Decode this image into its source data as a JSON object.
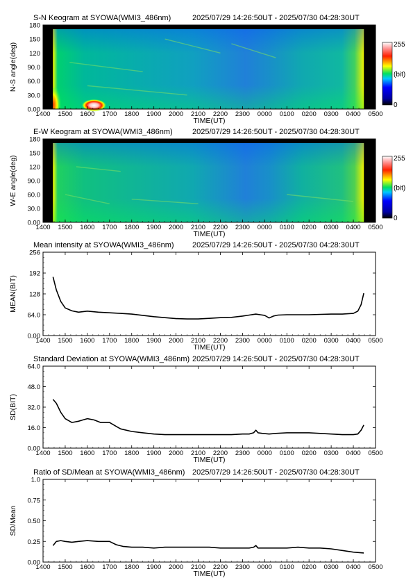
{
  "panels": [
    {
      "kind": "keogram",
      "title": "S-N Keogram at SYOWA(WMI3_486nm)",
      "time_range": "2025/07/29 14:26:50UT - 2025/07/30 04:28:30UT",
      "ylabel": "N-S angle(deg)",
      "xlabel": "TIME(UT)",
      "yticks": [
        "0.00",
        "30.0",
        "60.0",
        "90.0",
        "120",
        "150",
        "180"
      ],
      "colorbar": {
        "max": "255",
        "unit": "(bit)",
        "min": "0"
      }
    },
    {
      "kind": "keogram",
      "title": "E-W Keogram at SYOWA(WMI3_486nm)",
      "time_range": "2025/07/29 14:26:50UT - 2025/07/30 04:28:30UT",
      "ylabel": "W-E angle(deg)",
      "xlabel": "TIME(UT)",
      "yticks": [
        "0.00",
        "30.0",
        "60.0",
        "90.0",
        "120",
        "150",
        "180"
      ],
      "colorbar": {
        "max": "255",
        "unit": "(bit)",
        "min": "0"
      }
    },
    {
      "kind": "line",
      "title": "Mean intensity at SYOWA(WMI3_486nm)",
      "time_range": "2025/07/29 14:26:50UT - 2025/07/30 04:28:30UT",
      "ylabel": "MEAN(BIT)",
      "xlabel": "TIME(UT)",
      "yticks": [
        "0.00",
        "64.0",
        "128",
        "192",
        "256"
      ]
    },
    {
      "kind": "line",
      "title": "Standard Deviation at SYOWA(WMI3_486nm)",
      "time_range": "2025/07/29 14:26:50UT - 2025/07/30 04:28:30UT",
      "ylabel": "SD(BIT)",
      "xlabel": "TIME(UT)",
      "yticks": [
        "0.00",
        "16.0",
        "32.0",
        "48.0",
        "64.0"
      ]
    },
    {
      "kind": "line",
      "title": "Ratio of SD/Mean at SYOWA(WMI3_486nm)",
      "time_range": "2025/07/29 14:26:50UT - 2025/07/30 04:28:30UT",
      "ylabel": "SD/Mean",
      "xlabel": "TIME(UT)",
      "yticks": [
        "0.00",
        "0.25",
        "0.50",
        "0.75",
        "1.0"
      ]
    }
  ],
  "xticks": [
    "1400",
    "1500",
    "1600",
    "1700",
    "1800",
    "1900",
    "2000",
    "2100",
    "2200",
    "2300",
    "0000",
    "0100",
    "0200",
    "0300",
    "0400",
    "0500"
  ],
  "chart_data": [
    {
      "type": "heatmap",
      "title": "S-N Keogram at SYOWA(WMI3_486nm)",
      "xlabel": "TIME(UT)",
      "ylabel": "N-S angle(deg)",
      "x_range_ut_hours": [
        14,
        29
      ],
      "ylim": [
        0,
        180
      ],
      "color_range": [
        0,
        255
      ],
      "data_start_ut": "14:26:50",
      "data_end_ut": "04:28:30"
    },
    {
      "type": "heatmap",
      "title": "E-W Keogram at SYOWA(WMI3_486nm)",
      "xlabel": "TIME(UT)",
      "ylabel": "W-E angle(deg)",
      "x_range_ut_hours": [
        14,
        29
      ],
      "ylim": [
        0,
        180
      ],
      "color_range": [
        0,
        255
      ],
      "data_start_ut": "14:26:50",
      "data_end_ut": "04:28:30"
    },
    {
      "type": "line",
      "title": "Mean intensity at SYOWA(WMI3_486nm)",
      "xlabel": "TIME(UT)",
      "ylabel": "MEAN(BIT)",
      "ylim": [
        0,
        256
      ],
      "x": [
        14.45,
        14.6,
        14.8,
        15.0,
        15.3,
        15.6,
        16.0,
        16.5,
        17.0,
        17.5,
        18.0,
        18.5,
        19.0,
        19.5,
        20.0,
        20.5,
        21.0,
        21.5,
        22.0,
        22.5,
        23.0,
        23.3,
        23.6,
        23.8,
        24.0,
        24.2,
        24.4,
        24.6,
        25.0,
        25.5,
        26.0,
        26.5,
        27.0,
        27.5,
        28.0,
        28.2,
        28.35,
        28.47
      ],
      "y": [
        180,
        140,
        105,
        85,
        76,
        72,
        75,
        72,
        70,
        68,
        66,
        62,
        58,
        55,
        52,
        51,
        51,
        53,
        55,
        56,
        60,
        63,
        66,
        64,
        62,
        54,
        60,
        63,
        64,
        64,
        64,
        65,
        66,
        66,
        68,
        75,
        95,
        130
      ]
    },
    {
      "type": "line",
      "title": "Standard Deviation at SYOWA(WMI3_486nm)",
      "xlabel": "TIME(UT)",
      "ylabel": "SD(BIT)",
      "ylim": [
        0,
        64
      ],
      "x": [
        14.45,
        14.6,
        14.8,
        15.0,
        15.3,
        15.6,
        15.8,
        16.0,
        16.3,
        16.6,
        16.8,
        17.0,
        17.3,
        17.5,
        18.0,
        18.5,
        19.0,
        19.5,
        20.0,
        20.5,
        21.0,
        21.5,
        22.0,
        22.5,
        23.0,
        23.3,
        23.5,
        23.6,
        23.7,
        23.9,
        24.2,
        24.5,
        25.0,
        25.5,
        26.0,
        26.5,
        27.0,
        27.5,
        28.0,
        28.2,
        28.35,
        28.47
      ],
      "y": [
        38,
        35,
        28,
        23,
        20,
        21,
        22,
        23,
        22,
        20,
        20,
        20,
        17,
        15,
        13,
        12,
        11,
        10.5,
        10.5,
        10.5,
        10.5,
        10.5,
        10.5,
        10.5,
        11,
        11,
        12,
        14,
        12,
        11.5,
        11,
        11.5,
        12,
        12,
        12,
        11.5,
        11,
        10.5,
        10.5,
        11,
        14,
        18
      ]
    },
    {
      "type": "line",
      "title": "Ratio of SD/Mean at SYOWA(WMI3_486nm)",
      "xlabel": "TIME(UT)",
      "ylabel": "SD/Mean",
      "ylim": [
        0,
        1
      ],
      "x": [
        14.45,
        14.6,
        14.8,
        15.0,
        15.3,
        15.6,
        16.0,
        16.5,
        17.0,
        17.3,
        17.6,
        18.0,
        18.5,
        19.0,
        19.5,
        20.0,
        20.5,
        21.0,
        21.5,
        22.0,
        22.5,
        23.0,
        23.3,
        23.5,
        23.6,
        23.7,
        24.0,
        24.5,
        25.0,
        25.5,
        26.0,
        26.5,
        27.0,
        27.5,
        28.0,
        28.47
      ],
      "y": [
        0.2,
        0.25,
        0.26,
        0.25,
        0.24,
        0.25,
        0.26,
        0.25,
        0.25,
        0.21,
        0.19,
        0.18,
        0.18,
        0.17,
        0.18,
        0.18,
        0.18,
        0.18,
        0.18,
        0.17,
        0.17,
        0.17,
        0.17,
        0.18,
        0.2,
        0.17,
        0.17,
        0.17,
        0.17,
        0.18,
        0.17,
        0.17,
        0.16,
        0.14,
        0.12,
        0.11
      ]
    }
  ]
}
